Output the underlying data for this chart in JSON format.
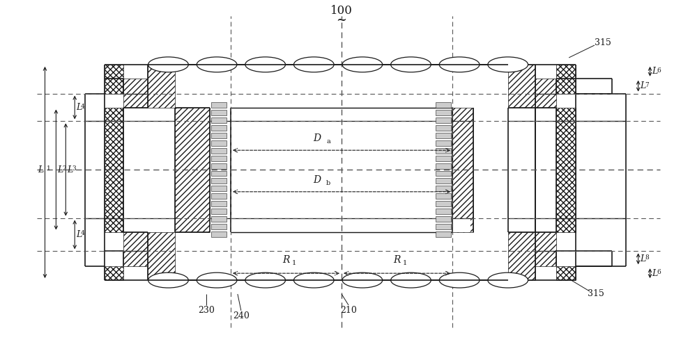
{
  "bg_color": "#ffffff",
  "line_color": "#1a1a1a",
  "dashed_color": "#555555",
  "fig_width": 10.0,
  "fig_height": 4.92,
  "label_100": "100",
  "label_tilde": "~",
  "label_R1_left": "R",
  "label_R1_right": "R",
  "label_Da": "D",
  "label_Db": "D",
  "label_L1": "L",
  "label_L2": "L",
  "label_L3": "L",
  "label_L4_top": "L",
  "label_L4_bot": "L",
  "label_L6_top": "L",
  "label_L6_bot": "L",
  "label_L7": "L",
  "label_L8": "L",
  "label_230": "230",
  "label_240": "240",
  "label_210": "210",
  "label_315_top": "315",
  "label_315_bot": "315",
  "sub_R1": "1",
  "sub_Da": "a",
  "sub_Db": "b",
  "sub_L1": "1",
  "sub_L2": "2",
  "sub_L3": "3",
  "sub_L4": "4",
  "sub_L6": "6",
  "sub_L7": "7",
  "sub_L8": "8"
}
